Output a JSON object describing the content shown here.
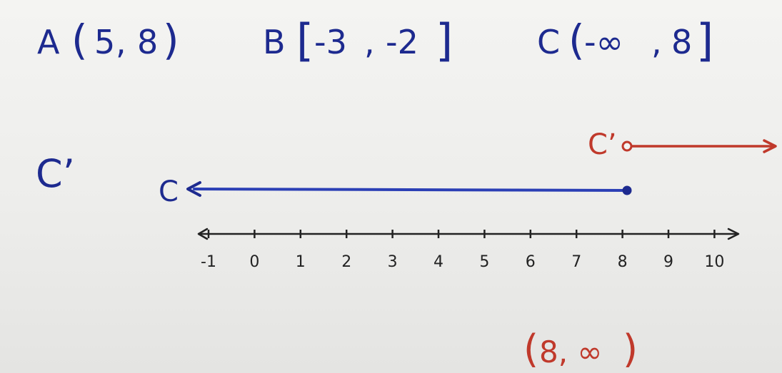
{
  "intervals": [
    {
      "letter": "A",
      "open": "(",
      "a": "5",
      "b": "8",
      "close": ")"
    },
    {
      "letter": "B",
      "open": "[",
      "a": "-3",
      "b": "-2",
      "close": "]"
    },
    {
      "letter": "C",
      "open": "(",
      "a": "-∞",
      "b": "8",
      "close": "]"
    }
  ],
  "complement_label": "C’",
  "ray_c_label": "C",
  "ray_cprime_label": "C’",
  "ticks": [
    "-1",
    "0",
    "1",
    "2",
    "3",
    "4",
    "5",
    "6",
    "7",
    "8",
    "9",
    "10"
  ],
  "answer": "(8, ∞)",
  "ray_c": {
    "endpoint": 8,
    "closed": true,
    "direction": "left"
  },
  "ray_cprime": {
    "endpoint": 8,
    "closed": false,
    "direction": "right"
  },
  "colors": {
    "blue": "#1d2a8f",
    "blue_line": "#2b3fb5",
    "red": "#c0392b",
    "axis": "#222222"
  }
}
